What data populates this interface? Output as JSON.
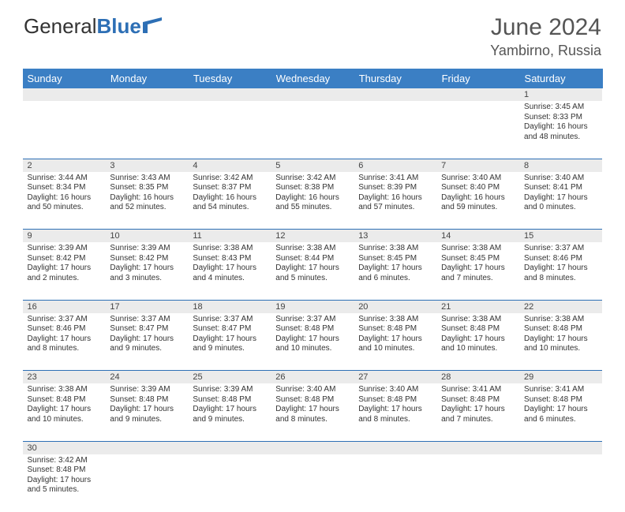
{
  "brand": {
    "part1": "General",
    "part2": "Blue"
  },
  "title": "June 2024",
  "location": "Yambirno, Russia",
  "colors": {
    "header_bg": "#3b7fc4",
    "accent": "#2d6fb5",
    "daynum_bg": "#ebebeb",
    "text": "#333333"
  },
  "weekdays": [
    "Sunday",
    "Monday",
    "Tuesday",
    "Wednesday",
    "Thursday",
    "Friday",
    "Saturday"
  ],
  "weeks": [
    {
      "nums": [
        "",
        "",
        "",
        "",
        "",
        "",
        "1"
      ],
      "cells": [
        null,
        null,
        null,
        null,
        null,
        null,
        {
          "sunrise": "3:45 AM",
          "sunset": "8:33 PM",
          "daylight": "16 hours and 48 minutes."
        }
      ]
    },
    {
      "nums": [
        "2",
        "3",
        "4",
        "5",
        "6",
        "7",
        "8"
      ],
      "cells": [
        {
          "sunrise": "3:44 AM",
          "sunset": "8:34 PM",
          "daylight": "16 hours and 50 minutes."
        },
        {
          "sunrise": "3:43 AM",
          "sunset": "8:35 PM",
          "daylight": "16 hours and 52 minutes."
        },
        {
          "sunrise": "3:42 AM",
          "sunset": "8:37 PM",
          "daylight": "16 hours and 54 minutes."
        },
        {
          "sunrise": "3:42 AM",
          "sunset": "8:38 PM",
          "daylight": "16 hours and 55 minutes."
        },
        {
          "sunrise": "3:41 AM",
          "sunset": "8:39 PM",
          "daylight": "16 hours and 57 minutes."
        },
        {
          "sunrise": "3:40 AM",
          "sunset": "8:40 PM",
          "daylight": "16 hours and 59 minutes."
        },
        {
          "sunrise": "3:40 AM",
          "sunset": "8:41 PM",
          "daylight": "17 hours and 0 minutes."
        }
      ]
    },
    {
      "nums": [
        "9",
        "10",
        "11",
        "12",
        "13",
        "14",
        "15"
      ],
      "cells": [
        {
          "sunrise": "3:39 AM",
          "sunset": "8:42 PM",
          "daylight": "17 hours and 2 minutes."
        },
        {
          "sunrise": "3:39 AM",
          "sunset": "8:42 PM",
          "daylight": "17 hours and 3 minutes."
        },
        {
          "sunrise": "3:38 AM",
          "sunset": "8:43 PM",
          "daylight": "17 hours and 4 minutes."
        },
        {
          "sunrise": "3:38 AM",
          "sunset": "8:44 PM",
          "daylight": "17 hours and 5 minutes."
        },
        {
          "sunrise": "3:38 AM",
          "sunset": "8:45 PM",
          "daylight": "17 hours and 6 minutes."
        },
        {
          "sunrise": "3:38 AM",
          "sunset": "8:45 PM",
          "daylight": "17 hours and 7 minutes."
        },
        {
          "sunrise": "3:37 AM",
          "sunset": "8:46 PM",
          "daylight": "17 hours and 8 minutes."
        }
      ]
    },
    {
      "nums": [
        "16",
        "17",
        "18",
        "19",
        "20",
        "21",
        "22"
      ],
      "cells": [
        {
          "sunrise": "3:37 AM",
          "sunset": "8:46 PM",
          "daylight": "17 hours and 8 minutes."
        },
        {
          "sunrise": "3:37 AM",
          "sunset": "8:47 PM",
          "daylight": "17 hours and 9 minutes."
        },
        {
          "sunrise": "3:37 AM",
          "sunset": "8:47 PM",
          "daylight": "17 hours and 9 minutes."
        },
        {
          "sunrise": "3:37 AM",
          "sunset": "8:48 PM",
          "daylight": "17 hours and 10 minutes."
        },
        {
          "sunrise": "3:38 AM",
          "sunset": "8:48 PM",
          "daylight": "17 hours and 10 minutes."
        },
        {
          "sunrise": "3:38 AM",
          "sunset": "8:48 PM",
          "daylight": "17 hours and 10 minutes."
        },
        {
          "sunrise": "3:38 AM",
          "sunset": "8:48 PM",
          "daylight": "17 hours and 10 minutes."
        }
      ]
    },
    {
      "nums": [
        "23",
        "24",
        "25",
        "26",
        "27",
        "28",
        "29"
      ],
      "cells": [
        {
          "sunrise": "3:38 AM",
          "sunset": "8:48 PM",
          "daylight": "17 hours and 10 minutes."
        },
        {
          "sunrise": "3:39 AM",
          "sunset": "8:48 PM",
          "daylight": "17 hours and 9 minutes."
        },
        {
          "sunrise": "3:39 AM",
          "sunset": "8:48 PM",
          "daylight": "17 hours and 9 minutes."
        },
        {
          "sunrise": "3:40 AM",
          "sunset": "8:48 PM",
          "daylight": "17 hours and 8 minutes."
        },
        {
          "sunrise": "3:40 AM",
          "sunset": "8:48 PM",
          "daylight": "17 hours and 8 minutes."
        },
        {
          "sunrise": "3:41 AM",
          "sunset": "8:48 PM",
          "daylight": "17 hours and 7 minutes."
        },
        {
          "sunrise": "3:41 AM",
          "sunset": "8:48 PM",
          "daylight": "17 hours and 6 minutes."
        }
      ]
    },
    {
      "nums": [
        "30",
        "",
        "",
        "",
        "",
        "",
        ""
      ],
      "cells": [
        {
          "sunrise": "3:42 AM",
          "sunset": "8:48 PM",
          "daylight": "17 hours and 5 minutes."
        },
        null,
        null,
        null,
        null,
        null,
        null
      ]
    }
  ],
  "labels": {
    "sunrise": "Sunrise:",
    "sunset": "Sunset:",
    "daylight": "Daylight:"
  }
}
